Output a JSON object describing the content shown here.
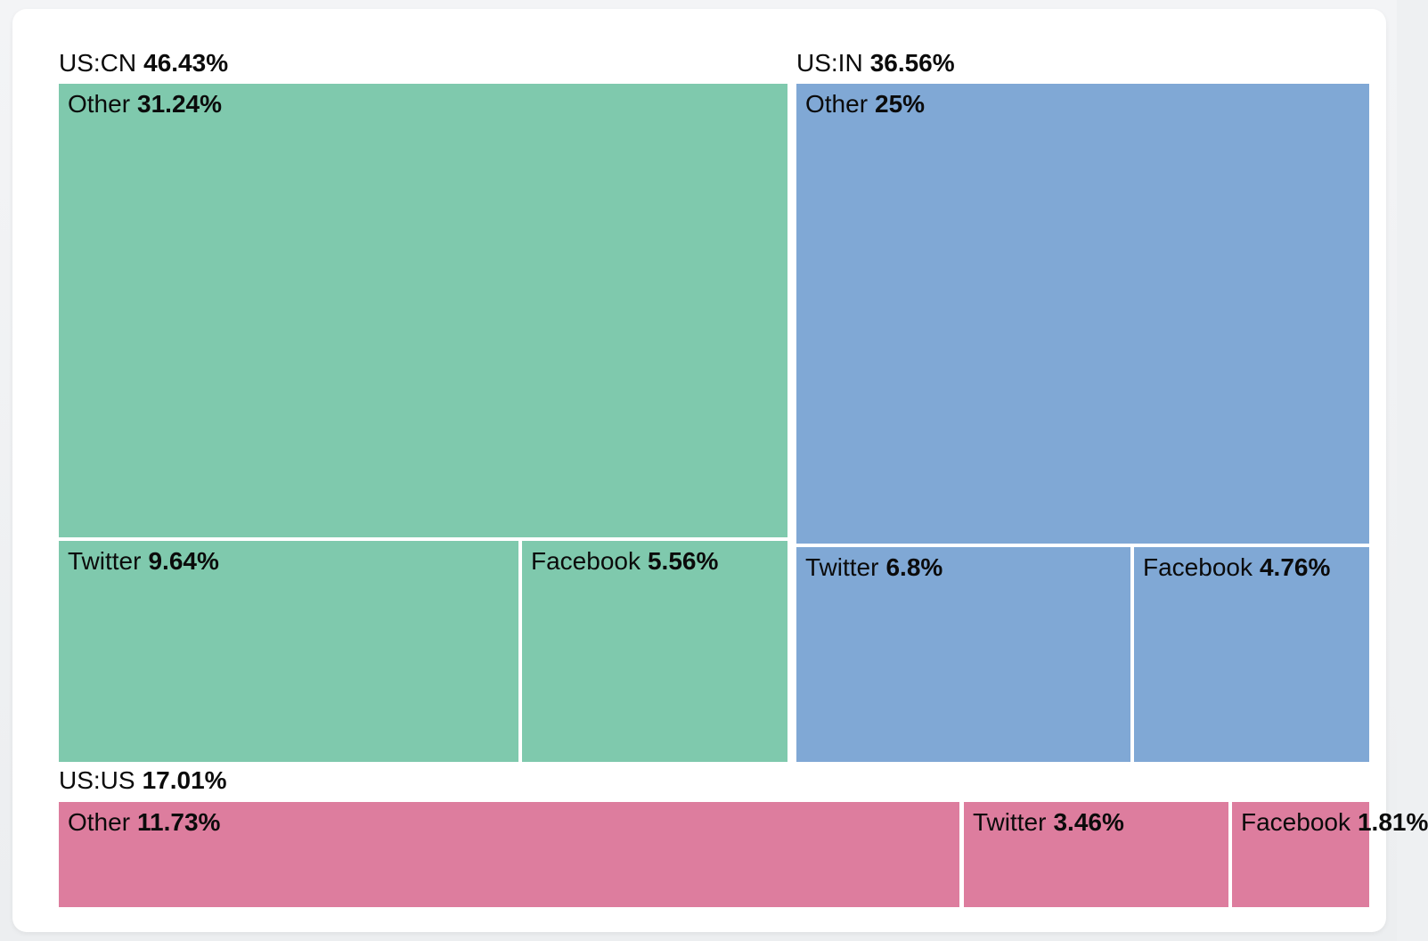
{
  "chart_data": {
    "type": "treemap",
    "title": "",
    "legend": "none",
    "value_format": "percent",
    "groups": [
      {
        "label": "US:CN",
        "value": 46.43,
        "value_label": "46.43%",
        "color": "#7fc9ad",
        "children": [
          {
            "label": "Other",
            "value": 31.24,
            "value_label": "31.24%"
          },
          {
            "label": "Twitter",
            "value": 9.64,
            "value_label": "9.64%"
          },
          {
            "label": "Facebook",
            "value": 5.56,
            "value_label": "5.56%"
          }
        ]
      },
      {
        "label": "US:IN",
        "value": 36.56,
        "value_label": "36.56%",
        "color": "#80a8d5",
        "children": [
          {
            "label": "Other",
            "value": 25,
            "value_label": "25%"
          },
          {
            "label": "Twitter",
            "value": 6.8,
            "value_label": "6.8%"
          },
          {
            "label": "Facebook",
            "value": 4.76,
            "value_label": "4.76%"
          }
        ]
      },
      {
        "label": "US:US",
        "value": 17.01,
        "value_label": "17.01%",
        "color": "#dd7d9e",
        "children": [
          {
            "label": "Other",
            "value": 11.73,
            "value_label": "11.73%"
          },
          {
            "label": "Twitter",
            "value": 3.46,
            "value_label": "3.46%"
          },
          {
            "label": "Facebook",
            "value": 1.81,
            "value_label": "1.81%"
          }
        ]
      }
    ],
    "colors": {
      "us_cn": "#7fc9ad",
      "us_in": "#80a8d5",
      "us_us": "#dd7d9e",
      "text": "#0b0b0b",
      "card_background": "#ffffff",
      "page_background": "#eef0f2"
    }
  }
}
